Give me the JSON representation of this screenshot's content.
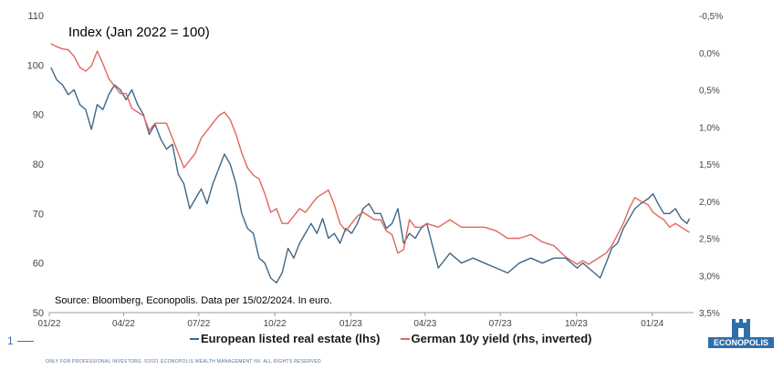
{
  "chart_data": {
    "type": "line",
    "title": "Index (Jan 2022 = 100)",
    "source_note": "Source: Bloomberg, Econopolis. Data per 15/02/2024. In euro.",
    "x_tick_labels": [
      "01/22",
      "04/22",
      "07/22",
      "10/22",
      "01/23",
      "04/23",
      "07/23",
      "10/23",
      "01/24"
    ],
    "y_left": {
      "lim": [
        50,
        110
      ],
      "ticks": [
        "50",
        "60",
        "70",
        "80",
        "90",
        "100",
        "110"
      ]
    },
    "y_right": {
      "lim": [
        -0.5,
        3.5
      ],
      "inverted": true,
      "ticks": [
        "-0,5%",
        "0,0%",
        "0,5%",
        "1,0%",
        "1,5%",
        "2,0%",
        "2,5%",
        "3,0%",
        "3,5%"
      ]
    },
    "grid": false,
    "series": [
      {
        "name": "European listed real estate (lhs)",
        "axis": "left",
        "color": "#3f6787",
        "x": [
          "2022-01-03",
          "2022-01-10",
          "2022-01-17",
          "2022-01-24",
          "2022-01-31",
          "2022-02-07",
          "2022-02-14",
          "2022-02-21",
          "2022-02-28",
          "2022-03-07",
          "2022-03-14",
          "2022-03-21",
          "2022-03-28",
          "2022-04-04",
          "2022-04-11",
          "2022-04-18",
          "2022-04-25",
          "2022-05-02",
          "2022-05-09",
          "2022-05-16",
          "2022-05-23",
          "2022-05-30",
          "2022-06-06",
          "2022-06-13",
          "2022-06-20",
          "2022-06-27",
          "2022-07-04",
          "2022-07-11",
          "2022-07-18",
          "2022-07-25",
          "2022-08-01",
          "2022-08-08",
          "2022-08-15",
          "2022-08-22",
          "2022-08-29",
          "2022-09-05",
          "2022-09-12",
          "2022-09-19",
          "2022-09-26",
          "2022-10-03",
          "2022-10-10",
          "2022-10-17",
          "2022-10-24",
          "2022-10-31",
          "2022-11-07",
          "2022-11-14",
          "2022-11-21",
          "2022-11-28",
          "2022-12-05",
          "2022-12-12",
          "2022-12-19",
          "2022-12-26",
          "2023-01-02",
          "2023-01-09",
          "2023-01-16",
          "2023-01-23",
          "2023-01-30",
          "2023-02-06",
          "2023-02-13",
          "2023-02-20",
          "2023-02-27",
          "2023-03-06",
          "2023-03-13",
          "2023-03-20",
          "2023-03-27",
          "2023-04-03",
          "2023-04-17",
          "2023-05-01",
          "2023-05-15",
          "2023-05-29",
          "2023-06-12",
          "2023-06-26",
          "2023-07-10",
          "2023-07-24",
          "2023-08-07",
          "2023-08-21",
          "2023-09-04",
          "2023-09-18",
          "2023-10-02",
          "2023-10-09",
          "2023-10-16",
          "2023-10-23",
          "2023-10-30",
          "2023-11-06",
          "2023-11-13",
          "2023-11-20",
          "2023-11-27",
          "2023-12-04",
          "2023-12-11",
          "2023-12-18",
          "2023-12-27",
          "2024-01-02",
          "2024-01-08",
          "2024-01-15",
          "2024-01-22",
          "2024-01-29",
          "2024-02-05",
          "2024-02-12",
          "2024-02-15"
        ],
        "values": [
          99.5,
          97,
          96,
          94,
          95,
          92,
          91,
          87,
          92,
          91,
          94,
          96,
          95,
          93,
          95,
          92,
          90,
          86,
          88,
          85,
          83,
          84,
          78,
          76,
          71,
          73,
          75,
          72,
          76,
          79,
          82,
          80,
          76,
          70,
          67,
          66,
          61,
          60,
          57,
          56,
          58,
          63,
          61,
          64,
          66,
          68,
          66,
          69,
          65,
          66,
          64,
          67,
          66,
          68,
          71,
          72,
          70,
          70,
          67,
          68,
          71,
          64,
          66,
          65,
          67,
          68,
          59,
          62,
          60,
          61,
          60,
          59,
          58,
          60,
          61,
          60,
          61,
          61,
          59,
          60,
          59,
          58,
          57,
          60,
          63,
          64,
          67,
          69,
          71,
          72,
          73,
          74,
          72,
          70,
          70,
          71,
          69,
          68,
          69
        ]
      },
      {
        "name": "German 10y yield (rhs, inverted)",
        "axis": "right",
        "color": "#e0675c",
        "x": [
          "2022-01-03",
          "2022-01-10",
          "2022-01-17",
          "2022-01-24",
          "2022-01-31",
          "2022-02-07",
          "2022-02-14",
          "2022-02-21",
          "2022-02-28",
          "2022-03-07",
          "2022-03-14",
          "2022-03-21",
          "2022-03-28",
          "2022-04-04",
          "2022-04-11",
          "2022-04-18",
          "2022-04-25",
          "2022-05-02",
          "2022-05-09",
          "2022-05-16",
          "2022-05-23",
          "2022-05-30",
          "2022-06-06",
          "2022-06-13",
          "2022-06-20",
          "2022-06-27",
          "2022-07-04",
          "2022-07-11",
          "2022-07-18",
          "2022-07-25",
          "2022-08-01",
          "2022-08-08",
          "2022-08-15",
          "2022-08-22",
          "2022-08-29",
          "2022-09-05",
          "2022-09-12",
          "2022-09-19",
          "2022-09-26",
          "2022-10-03",
          "2022-10-10",
          "2022-10-17",
          "2022-10-24",
          "2022-10-31",
          "2022-11-07",
          "2022-11-14",
          "2022-11-21",
          "2022-11-28",
          "2022-12-05",
          "2022-12-12",
          "2022-12-19",
          "2022-12-26",
          "2023-01-02",
          "2023-01-09",
          "2023-01-16",
          "2023-01-23",
          "2023-01-30",
          "2023-02-06",
          "2023-02-13",
          "2023-02-20",
          "2023-02-27",
          "2023-03-06",
          "2023-03-13",
          "2023-03-20",
          "2023-03-27",
          "2023-04-03",
          "2023-04-17",
          "2023-05-01",
          "2023-05-15",
          "2023-05-29",
          "2023-06-12",
          "2023-06-26",
          "2023-07-10",
          "2023-07-24",
          "2023-08-07",
          "2023-08-21",
          "2023-09-04",
          "2023-09-18",
          "2023-10-02",
          "2023-10-09",
          "2023-10-16",
          "2023-10-23",
          "2023-10-30",
          "2023-11-06",
          "2023-11-13",
          "2023-11-20",
          "2023-11-27",
          "2023-12-04",
          "2023-12-11",
          "2023-12-18",
          "2023-12-27",
          "2024-01-02",
          "2024-01-08",
          "2024-01-15",
          "2024-01-22",
          "2024-01-29",
          "2024-02-05",
          "2024-02-12",
          "2024-02-15"
        ],
        "values": [
          -0.12,
          -0.08,
          -0.05,
          -0.04,
          0.05,
          0.2,
          0.25,
          0.18,
          -0.02,
          0.15,
          0.35,
          0.45,
          0.55,
          0.55,
          0.75,
          0.8,
          0.85,
          1.05,
          0.95,
          0.95,
          0.95,
          1.15,
          1.35,
          1.55,
          1.45,
          1.35,
          1.15,
          1.05,
          0.95,
          0.85,
          0.8,
          0.9,
          1.1,
          1.35,
          1.55,
          1.65,
          1.7,
          1.9,
          2.15,
          2.1,
          2.3,
          2.3,
          2.2,
          2.1,
          2.15,
          2.05,
          1.95,
          1.9,
          1.85,
          2.05,
          2.3,
          2.4,
          2.3,
          2.2,
          2.15,
          2.2,
          2.25,
          2.25,
          2.4,
          2.45,
          2.7,
          2.65,
          2.25,
          2.35,
          2.35,
          2.3,
          2.35,
          2.25,
          2.35,
          2.35,
          2.35,
          2.4,
          2.5,
          2.5,
          2.45,
          2.55,
          2.6,
          2.75,
          2.85,
          2.8,
          2.85,
          2.8,
          2.75,
          2.7,
          2.6,
          2.45,
          2.3,
          2.1,
          1.95,
          2.0,
          2.05,
          2.15,
          2.2,
          2.25,
          2.35,
          2.3,
          2.35,
          2.4,
          2.42
        ]
      }
    ]
  },
  "footer": {
    "slide_number": "1",
    "disclaimer": "ONLY FOR PROFESSIONAL INVESTORS. ©2021 ECONOPOLIS WEALTH MANAGEMENT NV. ALL RIGHTS RESERVED"
  },
  "logo": {
    "text": "ECONOPOLIS"
  }
}
